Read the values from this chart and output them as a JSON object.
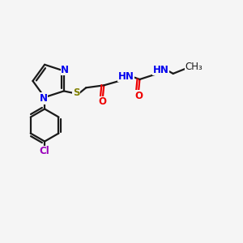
{
  "bg_color": "#f5f5f5",
  "line_color": "#1a1a1a",
  "N_color": "#0000ee",
  "O_color": "#ee0000",
  "S_color": "#808000",
  "Cl_color": "#9900bb",
  "bond_lw": 1.6,
  "fig_size": [
    3.0,
    3.0
  ],
  "dpi": 100,
  "xlim": [
    0,
    10
  ],
  "ylim": [
    0,
    10
  ]
}
